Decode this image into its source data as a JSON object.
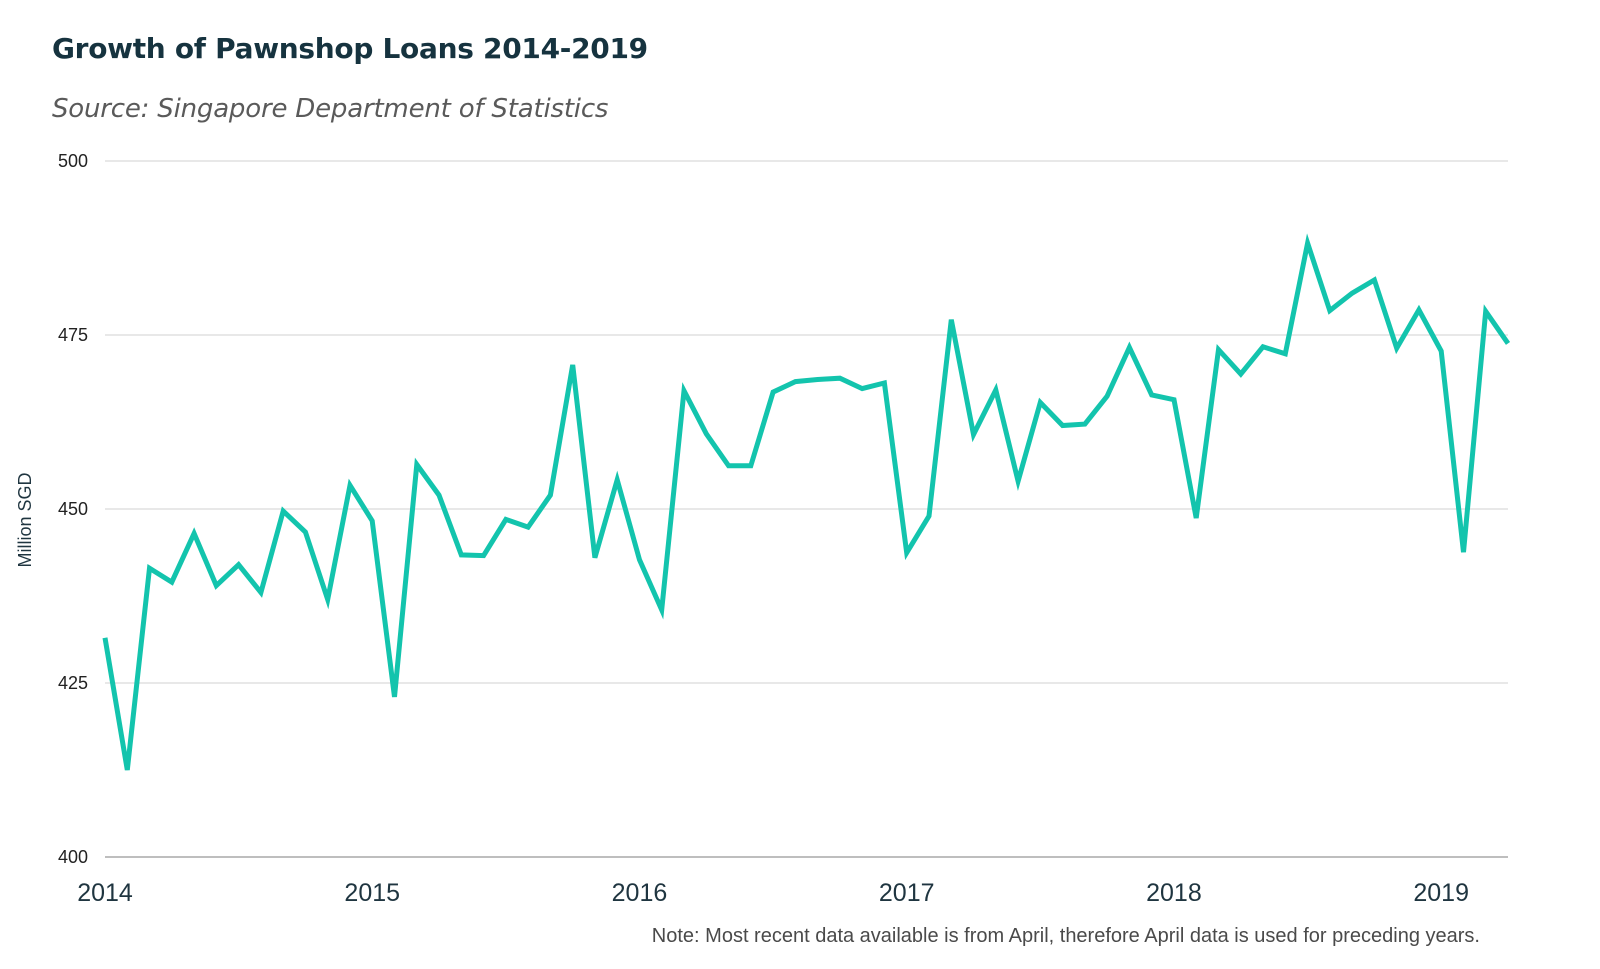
{
  "chart_data": {
    "type": "line",
    "title": "Growth of Pawnshop Loans 2014-2019",
    "subtitle": "Source: Singapore Department of Statistics",
    "xlabel": "",
    "ylabel": "Million SGD",
    "ylim": [
      400,
      500
    ],
    "y_ticks": [
      "400",
      "425",
      "450",
      "475",
      "500"
    ],
    "x_ticks": [
      "2014",
      "2015",
      "2016",
      "2017",
      "2018",
      "2019"
    ],
    "grid": true,
    "color": "#13c4ad",
    "note": "Note: Most recent data available is from April, therefore April data is used for preceding years.",
    "series": [
      {
        "x": [
          "2014-01",
          "2014-02",
          "2014-03",
          "2014-04",
          "2014-05",
          "2014-06",
          "2014-07",
          "2014-08",
          "2014-09",
          "2014-10",
          "2014-11",
          "2014-12",
          "2015-01",
          "2015-02",
          "2015-03",
          "2015-04",
          "2015-05",
          "2015-06",
          "2015-07",
          "2015-08",
          "2015-09",
          "2015-10",
          "2015-11",
          "2015-12",
          "2016-01",
          "2016-02",
          "2016-03",
          "2016-04",
          "2016-05",
          "2016-06",
          "2016-07",
          "2016-08",
          "2016-09",
          "2016-10",
          "2016-11",
          "2016-12",
          "2017-01",
          "2017-02",
          "2017-03",
          "2017-04",
          "2017-05",
          "2017-06",
          "2017-07",
          "2017-08",
          "2017-09",
          "2017-10",
          "2017-11",
          "2017-12",
          "2018-01",
          "2018-02",
          "2018-03",
          "2018-04",
          "2018-05",
          "2018-06",
          "2018-07",
          "2018-08",
          "2018-09",
          "2018-10",
          "2018-11",
          "2018-12",
          "2019-01",
          "2019-02",
          "2019-03",
          "2019-04"
        ],
        "values": [
          431.5,
          412.5,
          441.5,
          439.5,
          446.5,
          439,
          442,
          438,
          449.7,
          446.7,
          437,
          453.4,
          448.3,
          423,
          456.4,
          452,
          443.4,
          443.3,
          448.5,
          447.4,
          452,
          470.7,
          443,
          454.2,
          442.7,
          435.5,
          467,
          460.8,
          456.2,
          456.2,
          466.8,
          468.3,
          468.6,
          468.8,
          467.3,
          468.1,
          443.7,
          449,
          477.2,
          460.7,
          467.1,
          454,
          465.3,
          462,
          462.2,
          466.2,
          473.2,
          466.4,
          465.7,
          448.7,
          472.9,
          469.4,
          473.3,
          472.3,
          488.2,
          478.5,
          481,
          482.9,
          473.1,
          478.6,
          472.7,
          443.8,
          478.4,
          473.8
        ]
      }
    ]
  }
}
